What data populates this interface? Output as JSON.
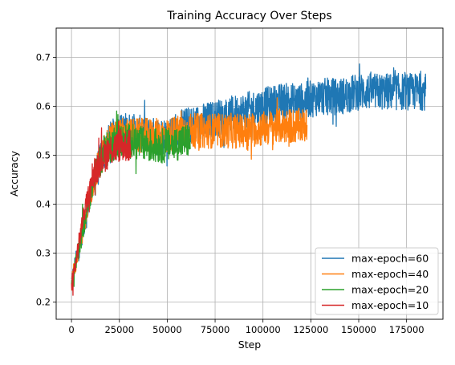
{
  "chart_data": {
    "type": "line",
    "title": "Training Accuracy Over Steps",
    "xlabel": "Step",
    "ylabel": "Accuracy",
    "xlim": [
      -8000,
      194000
    ],
    "ylim": [
      0.165,
      0.76
    ],
    "xticks": [
      0,
      25000,
      50000,
      75000,
      100000,
      125000,
      150000,
      175000
    ],
    "yticks": [
      0.2,
      0.3,
      0.4,
      0.5,
      0.6,
      0.7
    ],
    "xtick_labels": [
      "0",
      "25000",
      "50000",
      "75000",
      "100000",
      "125000",
      "150000",
      "175000"
    ],
    "ytick_labels": [
      "0.2",
      "0.3",
      "0.4",
      "0.5",
      "0.6",
      "0.7"
    ],
    "grid": true,
    "legend_position": "lower-right",
    "series": [
      {
        "name": "max-epoch=60",
        "color": "#1f77b4",
        "x": [
          0,
          5000,
          10000,
          15000,
          20000,
          25000,
          30000,
          40000,
          50000,
          60000,
          70000,
          80000,
          90000,
          100000,
          110000,
          120000,
          130000,
          140000,
          150000,
          160000,
          170000,
          180000,
          185000
        ],
        "y": [
          0.24,
          0.33,
          0.42,
          0.49,
          0.53,
          0.55,
          0.55,
          0.54,
          0.54,
          0.56,
          0.57,
          0.58,
          0.59,
          0.6,
          0.61,
          0.61,
          0.62,
          0.62,
          0.63,
          0.63,
          0.63,
          0.63,
          0.63
        ],
        "noise": 0.038
      },
      {
        "name": "max-epoch=40",
        "color": "#ff7f0e",
        "x": [
          0,
          5000,
          10000,
          15000,
          20000,
          25000,
          30000,
          40000,
          50000,
          60000,
          70000,
          80000,
          90000,
          100000,
          110000,
          120000,
          123000
        ],
        "y": [
          0.24,
          0.33,
          0.42,
          0.49,
          0.53,
          0.54,
          0.54,
          0.54,
          0.54,
          0.55,
          0.55,
          0.55,
          0.55,
          0.555,
          0.56,
          0.56,
          0.56
        ],
        "noise": 0.036
      },
      {
        "name": "max-epoch=20",
        "color": "#2ca02c",
        "x": [
          0,
          5000,
          10000,
          15000,
          20000,
          25000,
          30000,
          40000,
          50000,
          60000,
          62000
        ],
        "y": [
          0.24,
          0.33,
          0.42,
          0.49,
          0.52,
          0.53,
          0.53,
          0.52,
          0.52,
          0.53,
          0.53
        ],
        "noise": 0.036
      },
      {
        "name": "max-epoch=10",
        "color": "#d62728",
        "x": [
          0,
          3000,
          6000,
          10000,
          15000,
          20000,
          25000,
          31000
        ],
        "y": [
          0.23,
          0.3,
          0.37,
          0.44,
          0.49,
          0.51,
          0.52,
          0.52
        ],
        "noise": 0.034
      }
    ],
    "legend_order": [
      "max-epoch=60",
      "max-epoch=40",
      "max-epoch=20",
      "max-epoch=10"
    ],
    "draw_order": [
      "max-epoch=60",
      "max-epoch=40",
      "max-epoch=20",
      "max-epoch=10"
    ]
  }
}
